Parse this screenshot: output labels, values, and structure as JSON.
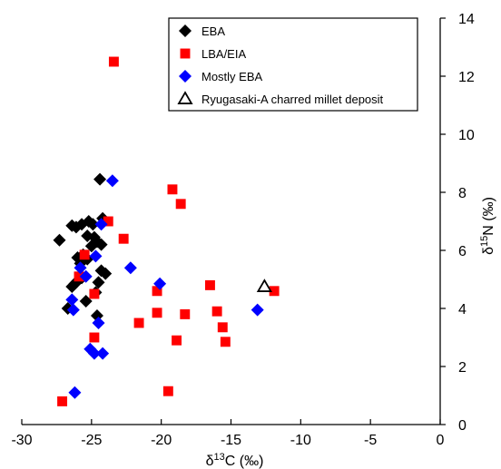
{
  "chart_data": {
    "type": "scatter",
    "xlabel_prefix": "δ",
    "xlabel_sup": "13",
    "xlabel_suffix": "C (‰)",
    "ylabel_prefix": "δ",
    "ylabel_sup": "15",
    "ylabel_suffix": "N (‰)",
    "xlim": [
      -30,
      0
    ],
    "ylim": [
      0,
      14
    ],
    "xticks": [
      -30,
      -25,
      -20,
      -15,
      -10,
      -5,
      0
    ],
    "yticks": [
      0,
      2,
      4,
      6,
      8,
      10,
      12,
      14
    ],
    "y_axis_position": "right",
    "legend_position": "top-right",
    "series": [
      {
        "name": "EBA",
        "marker": "diamond",
        "color": "#000000",
        "points": [
          [
            -27.3,
            6.35
          ],
          [
            -26.4,
            6.85
          ],
          [
            -26.1,
            6.8
          ],
          [
            -25.7,
            6.9
          ],
          [
            -25.2,
            7.0
          ],
          [
            -24.9,
            6.9
          ],
          [
            -24.2,
            7.1
          ],
          [
            -24.4,
            8.45
          ],
          [
            -25.3,
            6.5
          ],
          [
            -24.8,
            6.45
          ],
          [
            -24.6,
            6.3
          ],
          [
            -25.0,
            6.15
          ],
          [
            -24.3,
            6.2
          ],
          [
            -25.6,
            5.85
          ],
          [
            -26.0,
            5.75
          ],
          [
            -25.3,
            5.7
          ],
          [
            -25.8,
            5.55
          ],
          [
            -24.3,
            5.3
          ],
          [
            -24.0,
            5.2
          ],
          [
            -25.7,
            5.05
          ],
          [
            -26.0,
            4.95
          ],
          [
            -26.2,
            4.85
          ],
          [
            -26.4,
            4.75
          ],
          [
            -24.5,
            4.9
          ],
          [
            -24.7,
            4.55
          ],
          [
            -25.4,
            4.25
          ],
          [
            -26.7,
            4.0
          ],
          [
            -24.6,
            3.75
          ]
        ]
      },
      {
        "name": "LBA/EIA",
        "marker": "square",
        "color": "#ff0000",
        "points": [
          [
            -23.4,
            12.5
          ],
          [
            -19.2,
            8.1
          ],
          [
            -18.6,
            7.6
          ],
          [
            -23.8,
            7.0
          ],
          [
            -22.7,
            6.4
          ],
          [
            -25.5,
            5.85
          ],
          [
            -25.9,
            5.1
          ],
          [
            -24.8,
            4.5
          ],
          [
            -20.3,
            4.6
          ],
          [
            -16.5,
            4.8
          ],
          [
            -11.9,
            4.6
          ],
          [
            -20.3,
            3.85
          ],
          [
            -18.3,
            3.8
          ],
          [
            -16.0,
            3.9
          ],
          [
            -21.6,
            3.5
          ],
          [
            -15.6,
            3.35
          ],
          [
            -15.4,
            2.85
          ],
          [
            -18.9,
            2.9
          ],
          [
            -24.8,
            3.0
          ],
          [
            -19.5,
            1.15
          ],
          [
            -27.1,
            0.8
          ]
        ]
      },
      {
        "name": "Mostly EBA",
        "marker": "diamond",
        "color": "#0000ff",
        "points": [
          [
            -23.5,
            8.4
          ],
          [
            -24.3,
            6.9
          ],
          [
            -24.7,
            5.8
          ],
          [
            -25.8,
            5.4
          ],
          [
            -25.4,
            5.1
          ],
          [
            -22.2,
            5.4
          ],
          [
            -20.1,
            4.85
          ],
          [
            -26.4,
            4.3
          ],
          [
            -26.3,
            3.95
          ],
          [
            -24.5,
            3.5
          ],
          [
            -13.1,
            3.95
          ],
          [
            -25.1,
            2.6
          ],
          [
            -24.8,
            2.45
          ],
          [
            -24.2,
            2.45
          ],
          [
            -26.2,
            1.1
          ]
        ]
      },
      {
        "name": "Ryugasaki-A charred millet deposit",
        "marker": "triangle-open",
        "color": "#000000",
        "points": [
          [
            -12.6,
            4.75
          ]
        ]
      }
    ]
  }
}
